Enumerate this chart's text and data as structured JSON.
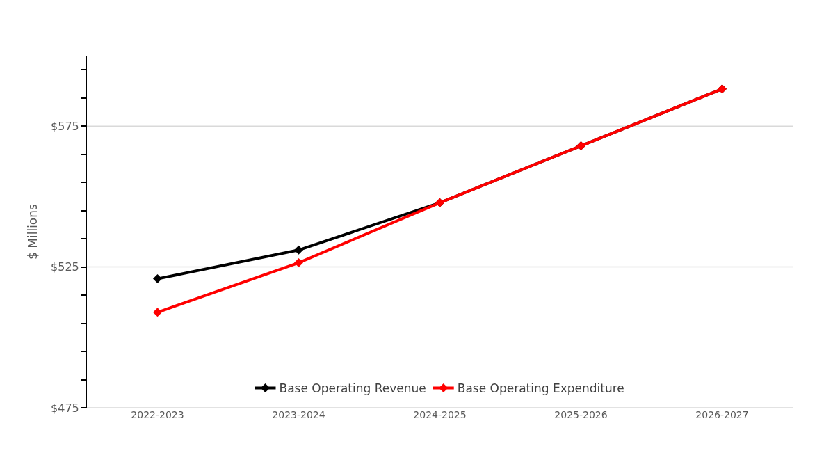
{
  "chart_data": {
    "type": "line",
    "ylabel": "$ Millions",
    "categories": [
      "2022-2023",
      "2023-2024",
      "2024-2025",
      "2025-2026",
      "2026-2027"
    ],
    "series": [
      {
        "name": "Base Operating Revenue",
        "color": "#000000",
        "values": [
          520.8,
          531,
          547.8,
          568,
          588.2
        ]
      },
      {
        "name": "Base Operating Expenditure",
        "color": "#ff0000",
        "values": [
          508.9,
          526.5,
          547.8,
          568,
          588.2
        ]
      }
    ],
    "ylim": [
      475,
      600
    ],
    "yticks": [
      {
        "value": 475,
        "label": "$475"
      },
      {
        "value": 485,
        "label": null
      },
      {
        "value": 495,
        "label": null
      },
      {
        "value": 505,
        "label": null
      },
      {
        "value": 515,
        "label": null
      },
      {
        "value": 525,
        "label": "$525"
      },
      {
        "value": 535,
        "label": null
      },
      {
        "value": 545,
        "label": null
      },
      {
        "value": 555,
        "label": null
      },
      {
        "value": 565,
        "label": null
      },
      {
        "value": 575,
        "label": "$575"
      },
      {
        "value": 585,
        "label": null
      },
      {
        "value": 595,
        "label": null
      }
    ],
    "grid": "y",
    "legend": "bottom",
    "marker": "diamond",
    "line_style": "solid"
  }
}
